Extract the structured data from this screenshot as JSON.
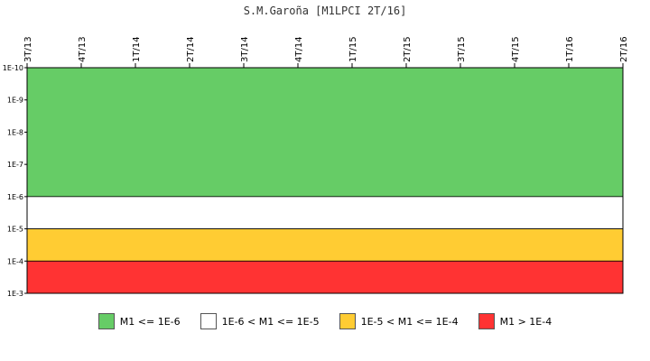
{
  "chart_data": {
    "type": "area",
    "title": "S.M.Garoña [M1LPCI 2T/16]",
    "x_categories": [
      "3T/13",
      "4T/13",
      "1T/14",
      "2T/14",
      "3T/14",
      "4T/14",
      "1T/15",
      "2T/15",
      "3T/15",
      "4T/15",
      "1T/16",
      "2T/16"
    ],
    "y_scale": "log",
    "y_axis_inverted": true,
    "y_ticks": [
      "1E-10",
      "1E-9",
      "1E-8",
      "1E-7",
      "1E-6",
      "1E-5",
      "1E-4",
      "1E-3"
    ],
    "ylim": [
      1e-10,
      0.001
    ],
    "bands": [
      {
        "label": "M1 <= 1E-6",
        "from": 1e-10,
        "to": 1e-06,
        "color": "#66cc66"
      },
      {
        "label": "1E-6 < M1 <= 1E-5",
        "from": 1e-06,
        "to": 1e-05,
        "color": "#ffffff"
      },
      {
        "label": "1E-5 < M1 <= 1E-4",
        "from": 1e-05,
        "to": 0.0001,
        "color": "#ffcc33"
      },
      {
        "label": "M1 > 1E-4",
        "from": 0.0001,
        "to": 0.001,
        "color": "#ff3333"
      }
    ],
    "grid": false,
    "legend_position": "bottom"
  }
}
